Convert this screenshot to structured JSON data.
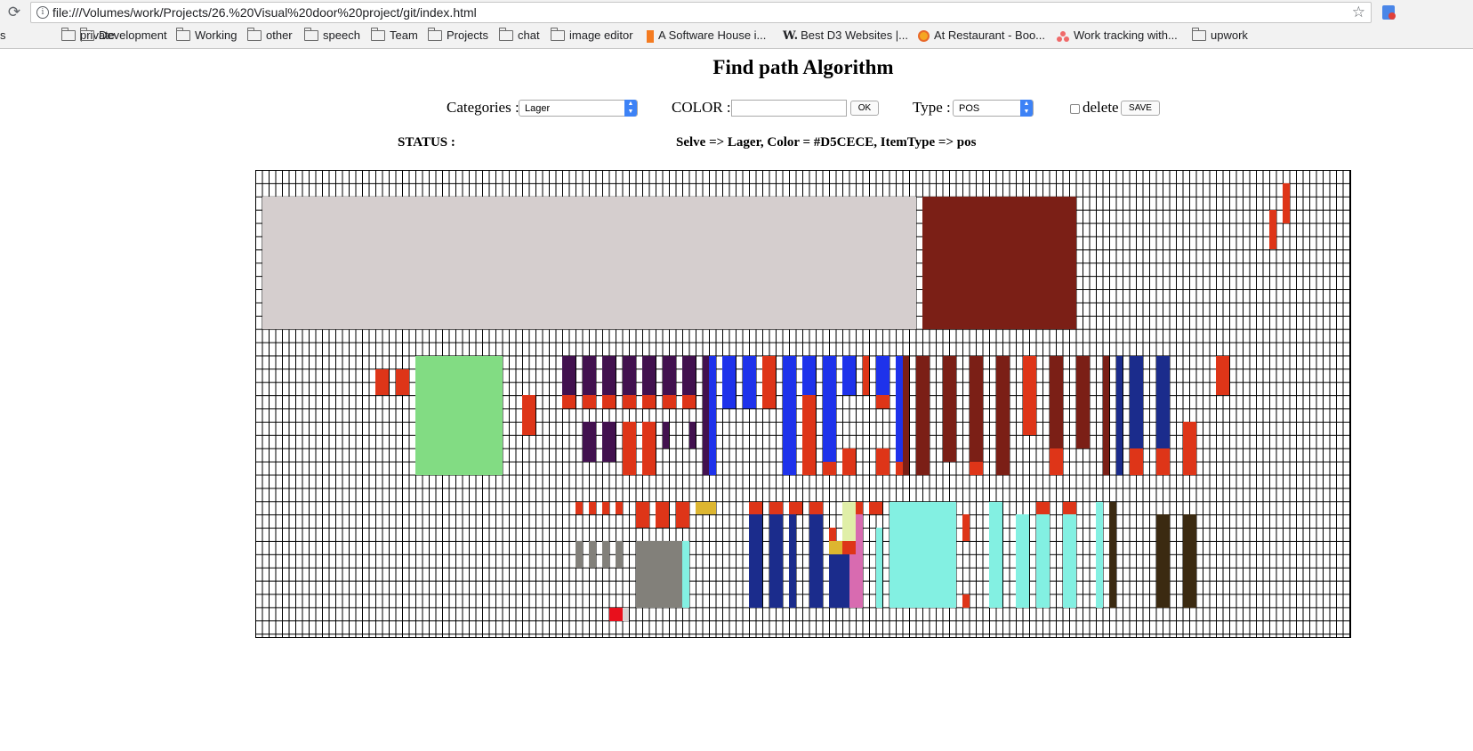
{
  "browser": {
    "url": "file:///Volumes/work/Projects/26.%20Visual%20door%20project/git/index.html",
    "info_icon": "info-icon",
    "star_icon": "star-icon",
    "reload_icon": "reload-icon",
    "bookmarks": [
      {
        "label": "s",
        "icon": "none"
      },
      {
        "label": "private",
        "icon": "folder-icon"
      },
      {
        "label": "Development",
        "icon": "folder-icon"
      },
      {
        "label": "Working",
        "icon": "folder-icon"
      },
      {
        "label": "other",
        "icon": "folder-icon"
      },
      {
        "label": "speech",
        "icon": "folder-icon"
      },
      {
        "label": "Team",
        "icon": "folder-icon"
      },
      {
        "label": "Projects",
        "icon": "folder-icon"
      },
      {
        "label": "chat",
        "icon": "folder-icon"
      },
      {
        "label": "image editor",
        "icon": "folder-icon"
      },
      {
        "label": "A Software House i...",
        "icon": "orange-bar-icon"
      },
      {
        "label": "Best D3 Websites |...",
        "icon": "w-logo-icon"
      },
      {
        "label": "At Restaurant - Boo...",
        "icon": "restaurant-icon"
      },
      {
        "label": "Work tracking with...",
        "icon": "asana-icon"
      },
      {
        "label": "upwork",
        "icon": "folder-icon"
      }
    ]
  },
  "page": {
    "title": "Find path Algorithm",
    "categories_label": "Categories :",
    "categories_value": "Lager",
    "color_label": "COLOR :",
    "color_value": "",
    "ok_label": "OK",
    "type_label": "Type :",
    "type_value": "POS",
    "delete_label": "delete",
    "delete_checked": false,
    "save_label": "SAVE",
    "status_label": "STATUS :",
    "status_text": "Selve => Lager, Color = #D5CECE, ItemType => pos"
  },
  "grid": {
    "colors": {
      "light_gray": "#D5CECE",
      "maroon": "#7B1F16",
      "red": "#DE3518",
      "green": "#82DC83",
      "purple": "#42114F",
      "blue": "#1E32EB",
      "navy": "#1B2C8C",
      "aqua": "#83F0E2",
      "gray": "#82807A",
      "yellow": "#DDB630",
      "pale_yellow": "#E0EFA8",
      "pink": "#D86BB0",
      "dark_brown": "#3B2A11",
      "bright_red": "#E8101C",
      "pale_gray": "#D8D3D3"
    }
  }
}
